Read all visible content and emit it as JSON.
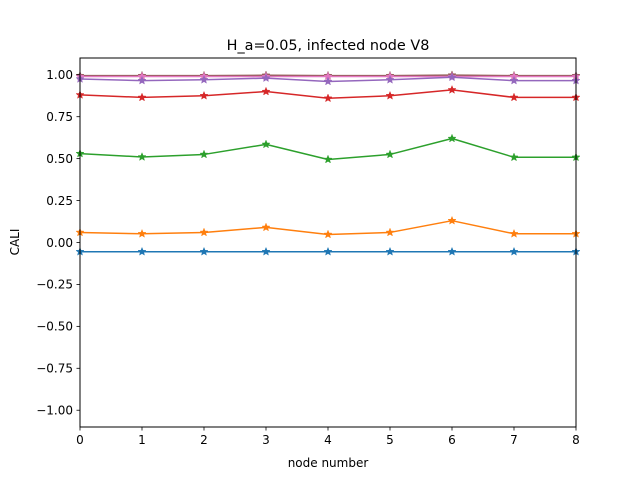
{
  "chart_data": {
    "type": "line",
    "title": "H_a=0.05, infected node V8",
    "xlabel": "node number",
    "ylabel": "CALI",
    "xlim": [
      0,
      8
    ],
    "ylim": [
      -1.1,
      1.1
    ],
    "x": [
      0,
      1,
      2,
      3,
      4,
      5,
      6,
      7,
      8
    ],
    "xticks": [
      "0",
      "1",
      "2",
      "3",
      "4",
      "5",
      "6",
      "7",
      "8"
    ],
    "yticks": [
      "−1.00",
      "−0.75",
      "−0.50",
      "−0.25",
      "0.00",
      "0.25",
      "0.50",
      "0.75",
      "1.00"
    ],
    "ytick_values": [
      -1.0,
      -0.75,
      -0.5,
      -0.25,
      0.0,
      0.25,
      0.5,
      0.75,
      1.0
    ],
    "grid": false,
    "legend": "none",
    "marker": "star",
    "series": [
      {
        "color": "#1f77b4",
        "values": [
          -0.055,
          -0.055,
          -0.055,
          -0.055,
          -0.055,
          -0.055,
          -0.055,
          -0.055,
          -0.055
        ]
      },
      {
        "color": "#ff7f0e",
        "values": [
          0.06,
          0.052,
          0.06,
          0.09,
          0.048,
          0.06,
          0.13,
          0.052,
          0.052
        ]
      },
      {
        "color": "#2ca02c",
        "values": [
          0.53,
          0.51,
          0.525,
          0.585,
          0.495,
          0.525,
          0.62,
          0.508,
          0.508
        ]
      },
      {
        "color": "#d62728",
        "values": [
          0.88,
          0.865,
          0.875,
          0.9,
          0.86,
          0.875,
          0.91,
          0.865,
          0.865
        ]
      },
      {
        "color": "#8c564b",
        "values": [
          0.995,
          0.995,
          0.995,
          0.997,
          0.995,
          0.995,
          0.998,
          0.995,
          0.995
        ]
      },
      {
        "color": "#e377c2",
        "values": [
          0.99,
          0.99,
          0.99,
          0.99,
          0.99,
          0.99,
          0.99,
          0.99,
          0.99
        ]
      },
      {
        "color": "#9467bd",
        "values": [
          0.975,
          0.965,
          0.97,
          0.98,
          0.96,
          0.97,
          0.985,
          0.965,
          0.965
        ]
      }
    ]
  }
}
